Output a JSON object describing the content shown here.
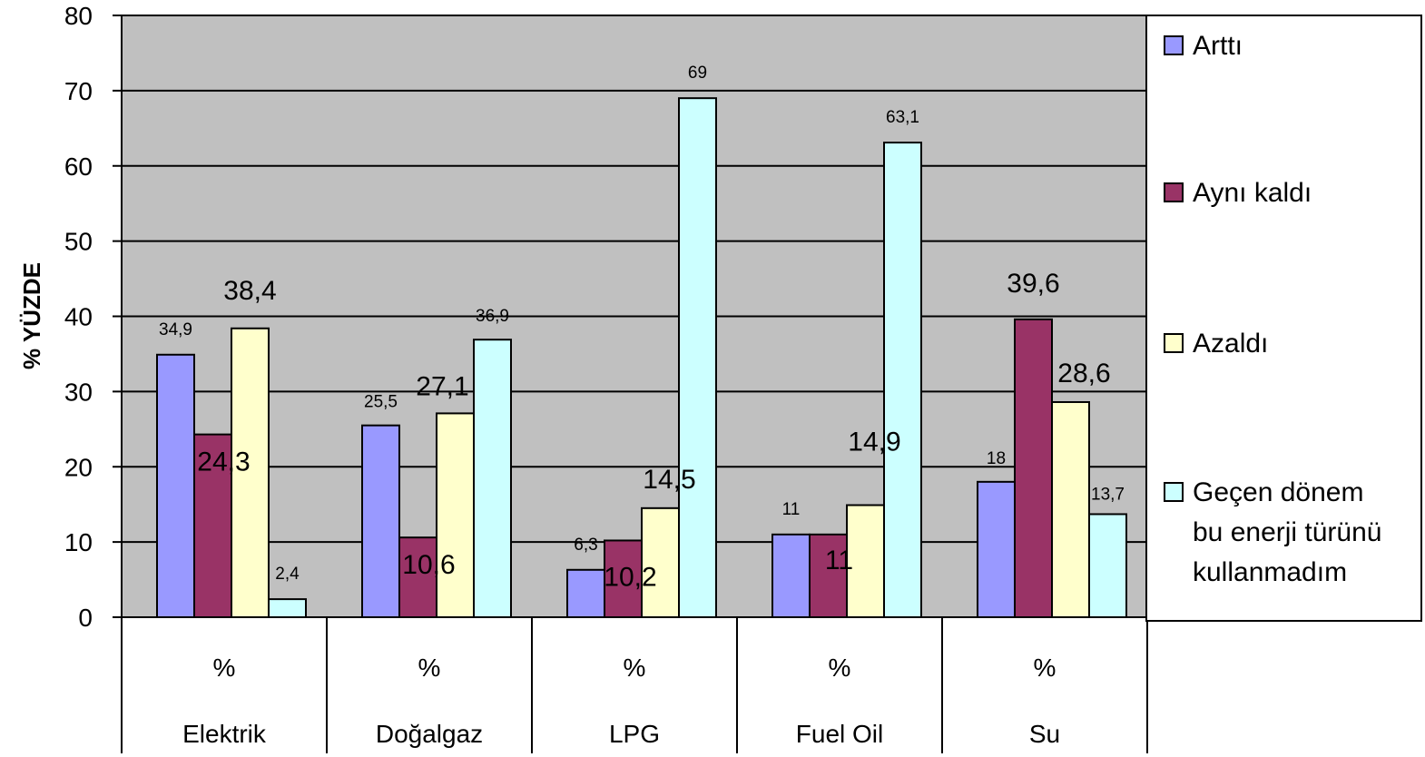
{
  "chart_data": {
    "type": "bar",
    "title": "",
    "xlabel": "",
    "ylabel": "% YÜZDE",
    "ylim": [
      0,
      80
    ],
    "yticks": [
      0,
      10,
      20,
      30,
      40,
      50,
      60,
      70,
      80
    ],
    "grid": true,
    "legend_position": "right",
    "category_units": [
      "%",
      "%",
      "%",
      "%",
      "%"
    ],
    "categories": [
      "Elektrik",
      "Doğalgaz",
      "LPG",
      "Fuel Oil",
      "Su"
    ],
    "series": [
      {
        "name": "Arttı",
        "color": "#9999ff",
        "values": [
          34.9,
          25.5,
          6.3,
          11,
          18
        ],
        "labels": [
          "34,9",
          "25,5",
          "6,3",
          "11",
          "18"
        ]
      },
      {
        "name": "Aynı kaldı",
        "color": "#993366",
        "values": [
          24.3,
          10.6,
          10.2,
          11,
          39.6
        ],
        "labels": [
          "24,3",
          "10,6",
          "10,2",
          "11",
          "39,6"
        ]
      },
      {
        "name": "Azaldı",
        "color": "#ffffcc",
        "values": [
          38.4,
          27.1,
          14.5,
          14.9,
          28.6
        ],
        "labels": [
          "38,4",
          "27,1",
          "14,5",
          "14,9",
          "28,6"
        ]
      },
      {
        "name": "Geçen dönem bu enerji türünü kullanmadım",
        "color": "#ccffff",
        "values": [
          2.4,
          36.9,
          69,
          63.1,
          13.7
        ],
        "labels": [
          "2,4",
          "36,9",
          "69",
          "63,1",
          "13,7"
        ]
      }
    ],
    "legend_lines": [
      [
        "Arttı"
      ],
      [
        "Aynı kaldı"
      ],
      [
        "Azaldı"
      ],
      [
        "Geçen dönem",
        "bu enerji türünü",
        "kullanmadım"
      ]
    ]
  }
}
